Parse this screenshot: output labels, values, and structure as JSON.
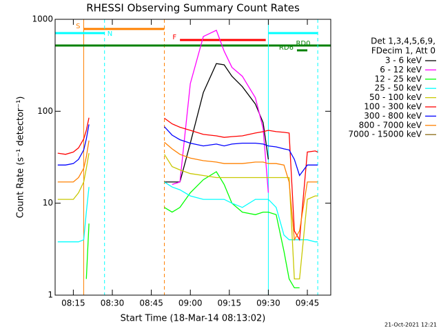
{
  "chart_data": {
    "type": "line",
    "title": "RHESSI Observing Summary Count Rates",
    "x_label": "Start Time (18-Mar-14 08:13:02)",
    "y_label": "Count Rate (s⁻¹ detector⁻¹)",
    "legend_header": [
      "Det 1,3,4,5,6,9,",
      "FDecim 1, Att 0"
    ],
    "footer": "21-Oct-2021 12:21",
    "log_y": true,
    "ylim": [
      1,
      1000
    ],
    "yticks": [
      1,
      10,
      100,
      1000
    ],
    "xlim": [
      "08:08",
      "09:54"
    ],
    "xticks": [
      "08:15",
      "08:30",
      "08:45",
      "09:00",
      "09:15",
      "09:30",
      "09:45"
    ],
    "x": [
      "08:09",
      "08:12",
      "08:15",
      "08:17",
      "08:19",
      "08:20",
      "08:21",
      "08:35",
      "08:50",
      "08:53",
      "08:56",
      "09:00",
      "09:05",
      "09:10",
      "09:13",
      "09:16",
      "09:20",
      "09:25",
      "09:28",
      "09:30",
      "09:33",
      "09:36",
      "09:38",
      "09:40",
      "09:42",
      "09:45",
      "09:48",
      "09:49"
    ],
    "series": [
      {
        "name": "3 - 6 keV",
        "color": "#000000",
        "values": [
          null,
          null,
          null,
          null,
          null,
          null,
          null,
          null,
          17,
          17,
          17,
          45,
          160,
          330,
          320,
          240,
          185,
          120,
          75,
          30,
          null,
          null,
          null,
          null,
          null,
          null,
          null,
          null
        ]
      },
      {
        "name": "6 - 12 keV",
        "color": "#ff00ff",
        "values": [
          null,
          null,
          null,
          null,
          null,
          null,
          null,
          null,
          null,
          16,
          17,
          200,
          650,
          760,
          450,
          300,
          240,
          140,
          65,
          13,
          null,
          null,
          null,
          null,
          null,
          null,
          null,
          null
        ]
      },
      {
        "name": "12 - 25 keV",
        "color": "#00ff00",
        "values": [
          null,
          null,
          null,
          null,
          null,
          1.5,
          6,
          null,
          9,
          8,
          9,
          13,
          18,
          22,
          16,
          10,
          8,
          7.5,
          8,
          8,
          7.5,
          3,
          1.5,
          1.2,
          1.2,
          null,
          null,
          null
        ]
      },
      {
        "name": "25 - 50 keV",
        "color": "#00ffff",
        "values": [
          3.8,
          3.8,
          3.8,
          3.8,
          4,
          8,
          15,
          null,
          17,
          15,
          14,
          12,
          11,
          11,
          11,
          10,
          9,
          11,
          11,
          11,
          9,
          4.5,
          4,
          4,
          4,
          4,
          3.8,
          3.8
        ]
      },
      {
        "name": "50 - 100 keV",
        "color": "#c8c800",
        "values": [
          11,
          11,
          11,
          13,
          17,
          24,
          35,
          null,
          34,
          25,
          23,
          21,
          20,
          19,
          19,
          19,
          19,
          19,
          19,
          19,
          19,
          19,
          19,
          1.5,
          1.5,
          11,
          12,
          12
        ]
      },
      {
        "name": "100 - 300 keV",
        "color": "#ff0000",
        "values": [
          35,
          34,
          36,
          40,
          50,
          62,
          85,
          null,
          84,
          73,
          67,
          62,
          56,
          54,
          52,
          53,
          54,
          58,
          60,
          62,
          60,
          59,
          58,
          5,
          4,
          36,
          37,
          36
        ]
      },
      {
        "name": "300 - 800 keV",
        "color": "#0000ff",
        "values": [
          26,
          26,
          27,
          30,
          38,
          50,
          72,
          null,
          68,
          55,
          49,
          45,
          42,
          44,
          42,
          44,
          45,
          45,
          44,
          42,
          41,
          39,
          38,
          30,
          20,
          26,
          26,
          26
        ]
      },
      {
        "name": "800 - 7000 keV",
        "color": "#ff8000",
        "values": [
          17,
          17,
          17,
          19,
          24,
          32,
          48,
          null,
          46,
          39,
          34,
          31,
          29,
          28,
          27,
          27,
          27,
          28,
          28,
          27,
          27,
          26,
          17,
          4,
          5,
          17,
          17,
          17
        ]
      },
      {
        "name": "7000 - 15000 keV",
        "color": "#8b6914",
        "values": [
          null,
          null,
          null,
          null,
          null,
          null,
          null,
          null,
          null,
          null,
          null,
          null,
          null,
          null,
          null,
          null,
          null,
          null,
          null,
          null,
          null,
          null,
          null,
          null,
          null,
          null,
          null,
          null
        ]
      }
    ],
    "intervals": [
      {
        "label": "S",
        "color": "#ff8000",
        "start": "08:19",
        "end": "08:50"
      },
      {
        "label": "N",
        "color": "#00ffff",
        "start": "08:08",
        "end": "08:27"
      },
      {
        "label": "F",
        "color": "#ff0000",
        "start": "08:56",
        "end": "09:29"
      },
      {
        "label": "RD0",
        "color": "#008000",
        "start": "08:08",
        "end": "09:54"
      },
      {
        "label": "RD6",
        "color": "#008000",
        "start": "09:41",
        "end": "09:45"
      },
      {
        "color": "#00ffff",
        "start": "09:30",
        "end": "09:49"
      }
    ]
  }
}
